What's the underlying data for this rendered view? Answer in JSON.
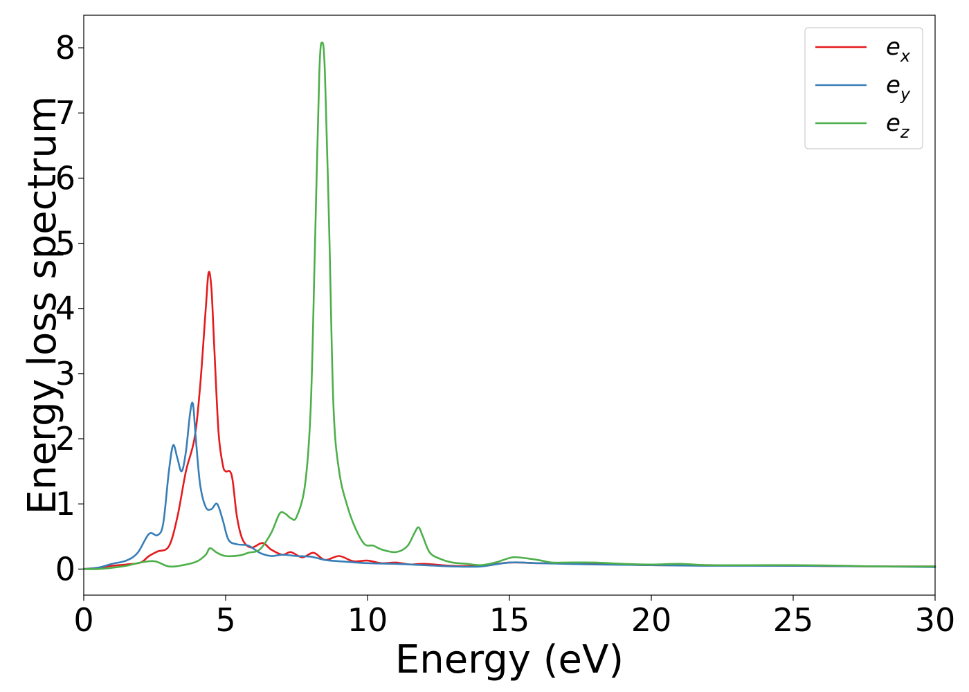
{
  "chart_data": {
    "type": "line",
    "title": "",
    "xlabel": "Energy (eV)",
    "ylabel": "Energy loss spectrum",
    "xlim": [
      0,
      30
    ],
    "ylim": [
      -0.4,
      8.5
    ],
    "xticks": [
      0,
      5,
      10,
      15,
      20,
      25,
      30
    ],
    "xtick_labels": [
      "0",
      "5",
      "10",
      "15",
      "20",
      "25",
      "30"
    ],
    "yticks": [
      0,
      1,
      2,
      3,
      4,
      5,
      6,
      7,
      8
    ],
    "ytick_labels": [
      "0",
      "1",
      "2",
      "3",
      "4",
      "5",
      "6",
      "7",
      "8"
    ],
    "grid": false,
    "legend_position": "top-right",
    "series": [
      {
        "name": "e_x",
        "legend_base": "e",
        "legend_sub": "x",
        "color": "#e41a1c",
        "points": [
          [
            0,
            0
          ],
          [
            0.5,
            0.02
          ],
          [
            1,
            0.05
          ],
          [
            1.5,
            0.07
          ],
          [
            2,
            0.1
          ],
          [
            2.3,
            0.2
          ],
          [
            2.6,
            0.27
          ],
          [
            3,
            0.35
          ],
          [
            3.3,
            0.8
          ],
          [
            3.6,
            1.5
          ],
          [
            3.9,
            2.0
          ],
          [
            4.1,
            2.8
          ],
          [
            4.3,
            4.0
          ],
          [
            4.4,
            4.55
          ],
          [
            4.5,
            4.3
          ],
          [
            4.6,
            3.4
          ],
          [
            4.75,
            2.1
          ],
          [
            4.9,
            1.6
          ],
          [
            5.0,
            1.5
          ],
          [
            5.15,
            1.5
          ],
          [
            5.25,
            1.35
          ],
          [
            5.4,
            0.8
          ],
          [
            5.6,
            0.45
          ],
          [
            5.9,
            0.33
          ],
          [
            6.3,
            0.4
          ],
          [
            6.6,
            0.3
          ],
          [
            7.0,
            0.22
          ],
          [
            7.3,
            0.26
          ],
          [
            7.7,
            0.18
          ],
          [
            8.1,
            0.25
          ],
          [
            8.5,
            0.14
          ],
          [
            9.0,
            0.2
          ],
          [
            9.5,
            0.12
          ],
          [
            10,
            0.13
          ],
          [
            10.5,
            0.09
          ],
          [
            11,
            0.1
          ],
          [
            11.5,
            0.07
          ],
          [
            12,
            0.08
          ],
          [
            13,
            0.05
          ],
          [
            14,
            0.05
          ],
          [
            15,
            0.1
          ],
          [
            16,
            0.09
          ],
          [
            17,
            0.09
          ],
          [
            18,
            0.08
          ],
          [
            20,
            0.06
          ],
          [
            22,
            0.06
          ],
          [
            25,
            0.05
          ],
          [
            28,
            0.04
          ],
          [
            30,
            0.04
          ]
        ]
      },
      {
        "name": "e_y",
        "legend_base": "e",
        "legend_sub": "y",
        "color": "#377eb8",
        "points": [
          [
            0,
            0
          ],
          [
            0.5,
            0.02
          ],
          [
            1,
            0.08
          ],
          [
            1.5,
            0.13
          ],
          [
            1.9,
            0.25
          ],
          [
            2.3,
            0.54
          ],
          [
            2.6,
            0.52
          ],
          [
            2.8,
            0.7
          ],
          [
            3.0,
            1.5
          ],
          [
            3.15,
            1.9
          ],
          [
            3.3,
            1.7
          ],
          [
            3.45,
            1.5
          ],
          [
            3.6,
            1.8
          ],
          [
            3.75,
            2.4
          ],
          [
            3.85,
            2.53
          ],
          [
            3.95,
            2.0
          ],
          [
            4.1,
            1.3
          ],
          [
            4.3,
            0.95
          ],
          [
            4.5,
            0.92
          ],
          [
            4.7,
            1.0
          ],
          [
            4.9,
            0.75
          ],
          [
            5.1,
            0.45
          ],
          [
            5.4,
            0.38
          ],
          [
            5.8,
            0.36
          ],
          [
            6.2,
            0.25
          ],
          [
            6.6,
            0.2
          ],
          [
            7.0,
            0.22
          ],
          [
            7.5,
            0.2
          ],
          [
            8,
            0.19
          ],
          [
            8.5,
            0.14
          ],
          [
            9,
            0.12
          ],
          [
            10,
            0.09
          ],
          [
            11,
            0.08
          ],
          [
            12,
            0.06
          ],
          [
            13,
            0.04
          ],
          [
            14,
            0.04
          ],
          [
            15,
            0.1
          ],
          [
            16,
            0.09
          ],
          [
            17,
            0.08
          ],
          [
            18,
            0.07
          ],
          [
            20,
            0.06
          ],
          [
            22,
            0.05
          ],
          [
            25,
            0.05
          ],
          [
            28,
            0.04
          ],
          [
            30,
            0.03
          ]
        ]
      },
      {
        "name": "e_z",
        "legend_base": "e",
        "legend_sub": "z",
        "color": "#4daf4a",
        "points": [
          [
            0,
            0
          ],
          [
            0.5,
            0.0
          ],
          [
            1,
            0.02
          ],
          [
            1.5,
            0.05
          ],
          [
            2,
            0.1
          ],
          [
            2.5,
            0.12
          ],
          [
            3,
            0.04
          ],
          [
            3.5,
            0.06
          ],
          [
            4,
            0.12
          ],
          [
            4.3,
            0.22
          ],
          [
            4.45,
            0.32
          ],
          [
            4.7,
            0.25
          ],
          [
            5,
            0.2
          ],
          [
            5.5,
            0.21
          ],
          [
            5.8,
            0.25
          ],
          [
            6.2,
            0.3
          ],
          [
            6.6,
            0.55
          ],
          [
            6.9,
            0.85
          ],
          [
            7.1,
            0.85
          ],
          [
            7.3,
            0.78
          ],
          [
            7.5,
            0.8
          ],
          [
            7.8,
            1.3
          ],
          [
            8.0,
            2.5
          ],
          [
            8.15,
            5.0
          ],
          [
            8.3,
            7.6
          ],
          [
            8.4,
            8.08
          ],
          [
            8.5,
            7.6
          ],
          [
            8.65,
            5.2
          ],
          [
            8.8,
            2.5
          ],
          [
            9.0,
            1.5
          ],
          [
            9.3,
            0.95
          ],
          [
            9.6,
            0.6
          ],
          [
            9.9,
            0.38
          ],
          [
            10.2,
            0.36
          ],
          [
            10.5,
            0.3
          ],
          [
            11.0,
            0.26
          ],
          [
            11.4,
            0.35
          ],
          [
            11.65,
            0.55
          ],
          [
            11.8,
            0.64
          ],
          [
            11.95,
            0.5
          ],
          [
            12.2,
            0.25
          ],
          [
            12.6,
            0.15
          ],
          [
            13,
            0.1
          ],
          [
            13.5,
            0.08
          ],
          [
            14,
            0.06
          ],
          [
            14.5,
            0.1
          ],
          [
            15,
            0.17
          ],
          [
            15.3,
            0.18
          ],
          [
            16,
            0.14
          ],
          [
            16.5,
            0.1
          ],
          [
            17,
            0.1
          ],
          [
            18,
            0.1
          ],
          [
            19,
            0.08
          ],
          [
            20,
            0.07
          ],
          [
            21,
            0.08
          ],
          [
            22,
            0.06
          ],
          [
            24,
            0.06
          ],
          [
            25,
            0.06
          ],
          [
            27,
            0.05
          ],
          [
            28,
            0.04
          ],
          [
            30,
            0.04
          ]
        ]
      }
    ]
  }
}
